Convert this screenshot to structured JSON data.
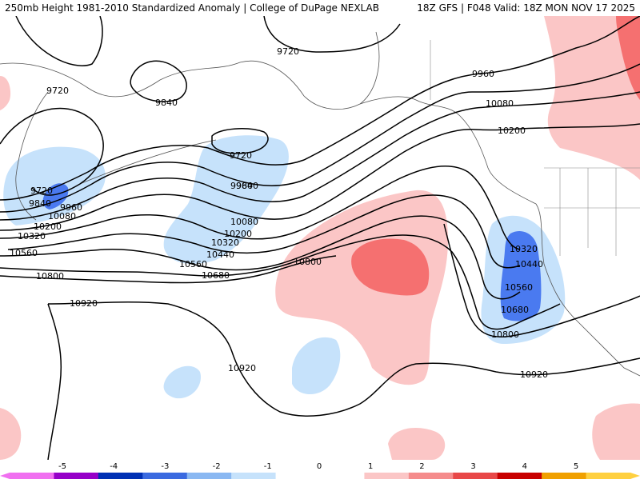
{
  "header": {
    "title_left": "250mb Height 1981-2010 Standardized Anomaly | College of DuPage NEXLAB",
    "title_right": "18Z GFS | F048 Valid: 18Z MON NOV 17 2025"
  },
  "map": {
    "contour_labels": [
      "9720",
      "9720",
      "9720",
      "9720",
      "9840",
      "9840",
      "9840",
      "9960",
      "9960",
      "9960",
      "10080",
      "10080",
      "10080",
      "10200",
      "10200",
      "10200",
      "10320",
      "10320",
      "10320",
      "10440",
      "10440",
      "10560",
      "10560",
      "10560",
      "10680",
      "10680",
      "10800",
      "10800",
      "10800",
      "10920",
      "10920",
      "10920"
    ],
    "colors": {
      "neg_light": "#c6e2fb",
      "neg_mid": "#4a7af0",
      "pos_light": "#fbc6c6",
      "pos_mid": "#f57070"
    }
  },
  "colorbar": {
    "ticks": [
      "-5",
      "-4",
      "-3",
      "-2",
      "-1",
      "0",
      "1",
      "2",
      "3",
      "4",
      "5"
    ],
    "colors": [
      "#f070f0",
      "#9600c8",
      "#0030b4",
      "#3a6ae0",
      "#8ab8f2",
      "#c6e2fb",
      "#ffffff",
      "#ffffff",
      "#fbc6c6",
      "#f58c8c",
      "#e84848",
      "#c80000",
      "#f0a000",
      "#ffd040"
    ]
  }
}
